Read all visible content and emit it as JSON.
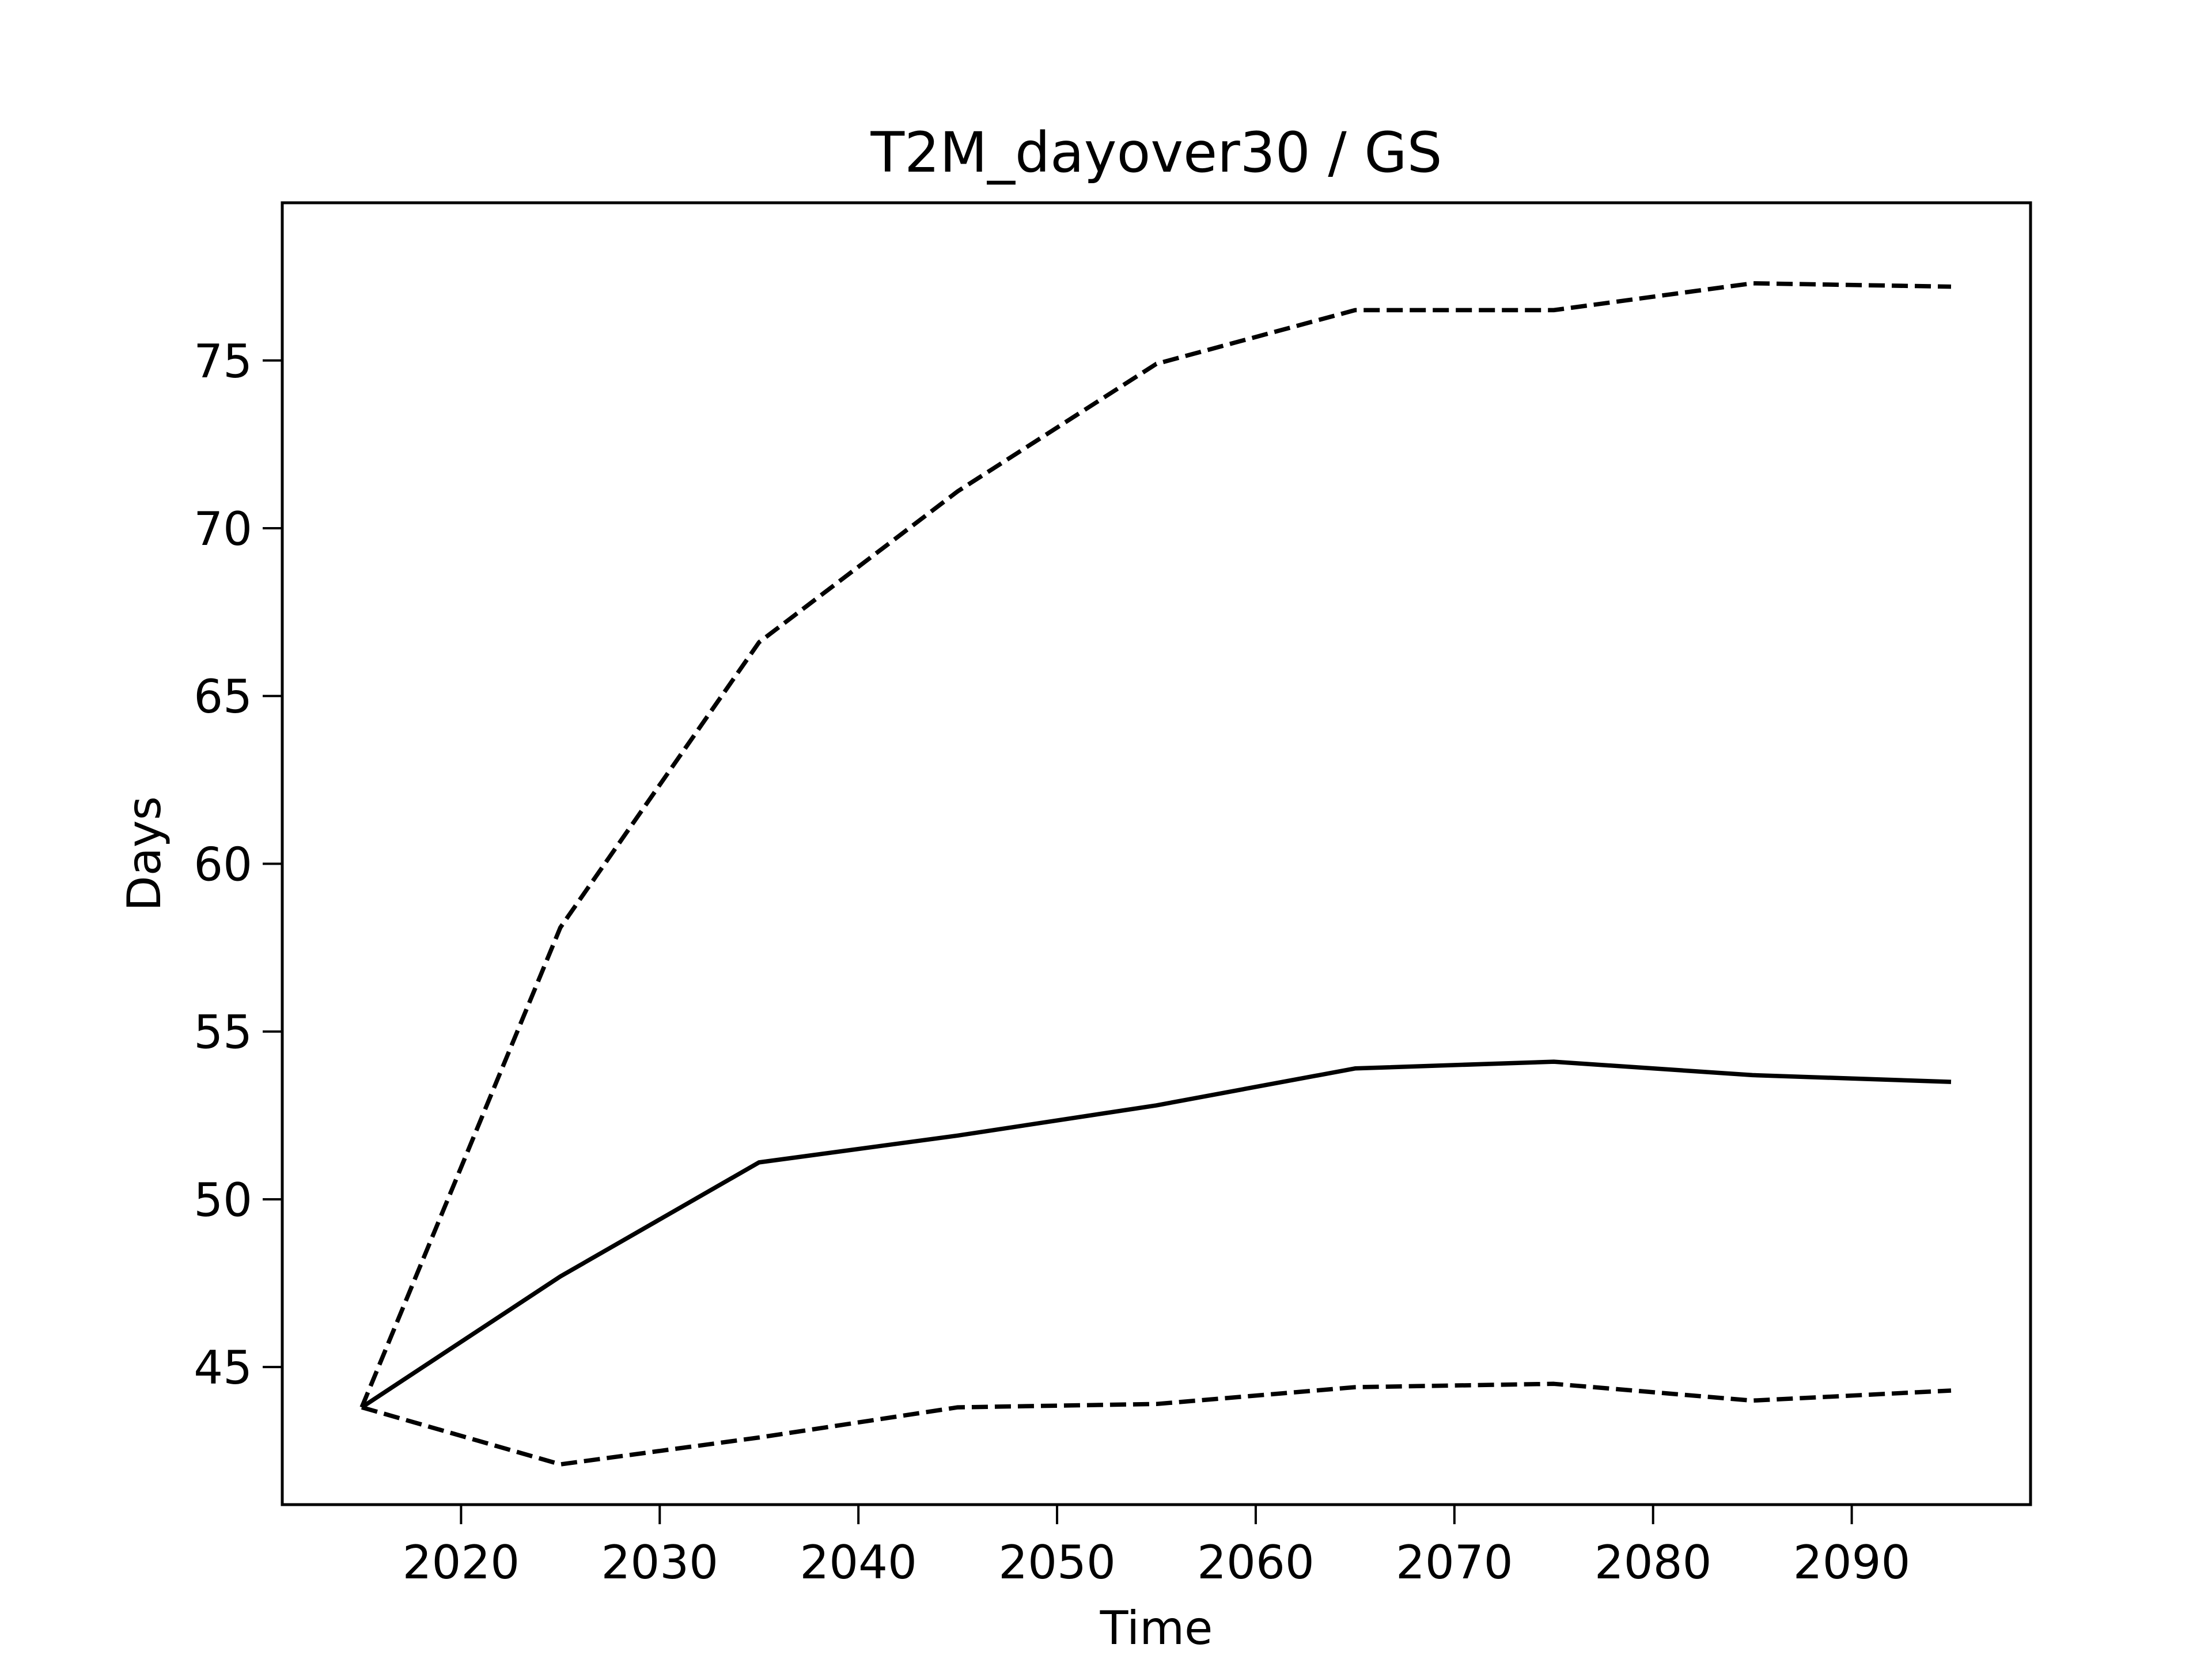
{
  "chart_data": {
    "type": "line",
    "title": "T2M_dayover30 / GS",
    "xlabel": "Time",
    "ylabel": "Days",
    "xlim": [
      2011,
      2099
    ],
    "ylim": [
      40.9,
      79.7
    ],
    "xticks": [
      2020,
      2030,
      2040,
      2050,
      2060,
      2070,
      2080,
      2090
    ],
    "yticks": [
      45,
      50,
      55,
      60,
      65,
      70,
      75
    ],
    "grid": false,
    "legend": "none",
    "x": [
      2015,
      2025,
      2035,
      2045,
      2055,
      2065,
      2075,
      2085,
      2095
    ],
    "series": [
      {
        "style": "solid",
        "color": "#000000",
        "values": [
          43.8,
          47.7,
          51.1,
          51.9,
          52.8,
          53.9,
          54.1,
          53.7,
          53.5
        ]
      },
      {
        "style": "dashed",
        "color": "#000000",
        "values": [
          43.8,
          58.1,
          66.6,
          71.1,
          74.9,
          76.5,
          76.5,
          77.3,
          77.2
        ]
      },
      {
        "style": "dashed",
        "color": "#000000",
        "values": [
          43.8,
          42.1,
          42.9,
          43.8,
          43.9,
          44.4,
          44.5,
          44.0,
          44.3
        ]
      }
    ]
  }
}
